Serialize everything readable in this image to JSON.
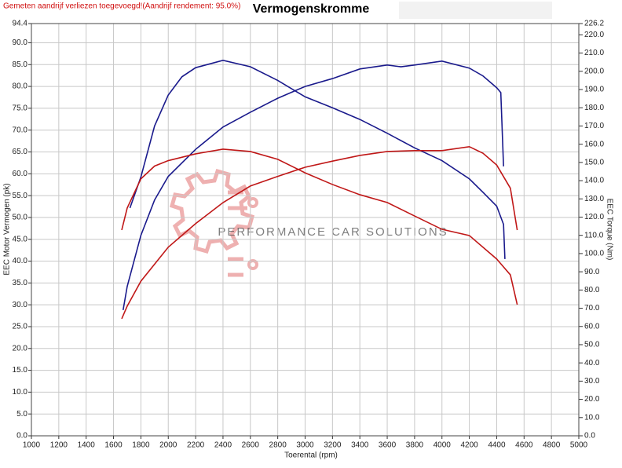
{
  "chart_data": {
    "type": "line",
    "note": "Gemeten aandrijf verliezen toegevoegd!(Aandrijf rendement: 95.0%)",
    "title": "Vermogenskromme",
    "watermark": "PERFORMANCE CAR SOLUTIONS",
    "xlabel": "Toerental (rpm)",
    "ylabel": "EEC Motor Vermogen (pk)",
    "y2label": "EEC Torque (Nm)",
    "grid": true,
    "xlim": [
      1000,
      5000
    ],
    "xticks": [
      1000,
      1200,
      1400,
      1600,
      1800,
      2000,
      2200,
      2400,
      2600,
      2800,
      3000,
      3200,
      3400,
      3600,
      3800,
      4000,
      4200,
      4400,
      4600,
      4800,
      5000
    ],
    "ylim": [
      0,
      94.4
    ],
    "yticks": [
      {
        "value": 0,
        "label": "0.0"
      },
      {
        "value": 5,
        "label": "5.0"
      },
      {
        "value": 10,
        "label": "10.0"
      },
      {
        "value": 15,
        "label": "15.0"
      },
      {
        "value": 20,
        "label": "20.0"
      },
      {
        "value": 25,
        "label": "25.0"
      },
      {
        "value": 30,
        "label": "30.0"
      },
      {
        "value": 35,
        "label": "35.0"
      },
      {
        "value": 40,
        "label": "40.0"
      },
      {
        "value": 45,
        "label": "45.0"
      },
      {
        "value": 50,
        "label": "50.0"
      },
      {
        "value": 55,
        "label": "55.0"
      },
      {
        "value": 60,
        "label": "60.0"
      },
      {
        "value": 65,
        "label": "65.0"
      },
      {
        "value": 70,
        "label": "70.0"
      },
      {
        "value": 75,
        "label": "75.0"
      },
      {
        "value": 80,
        "label": "80.0"
      },
      {
        "value": 85,
        "label": "85.0"
      },
      {
        "value": 90,
        "label": "90.0"
      },
      94.4
    ],
    "y2lim": [
      0,
      226.2
    ],
    "y2ticks": [
      {
        "value": 0,
        "label": "0.0"
      },
      {
        "value": 10,
        "label": "10.0"
      },
      {
        "value": 20,
        "label": "20.0"
      },
      {
        "value": 30,
        "label": "30.0"
      },
      {
        "value": 40,
        "label": "40.0"
      },
      {
        "value": 50,
        "label": "50.0"
      },
      {
        "value": 60,
        "label": "60.0"
      },
      {
        "value": 70,
        "label": "70.0"
      },
      {
        "value": 80,
        "label": "80.0"
      },
      {
        "value": 90,
        "label": "90.0"
      },
      {
        "value": 100,
        "label": "100.0"
      },
      {
        "value": 110,
        "label": "110.0"
      },
      {
        "value": 120,
        "label": "120.0"
      },
      {
        "value": 130,
        "label": "130.0"
      },
      {
        "value": 140,
        "label": "140.0"
      },
      {
        "value": 150,
        "label": "150.0"
      },
      {
        "value": 160,
        "label": "160.0"
      },
      {
        "value": 170,
        "label": "170.0"
      },
      {
        "value": 180,
        "label": "180.0"
      },
      {
        "value": 190,
        "label": "190.0"
      },
      {
        "value": 200,
        "label": "200.0"
      },
      {
        "value": 210,
        "label": "210.0"
      },
      {
        "value": 220,
        "label": "220.0"
      },
      226.2
    ],
    "series": [
      {
        "color": "#1a1a8c",
        "axis": "y2",
        "x": [
          1720,
          1800,
          1900,
          2000,
          2100,
          2200,
          2400,
          2600,
          2800,
          3000,
          3200,
          3400,
          3600,
          3800,
          4000,
          4200,
          4300,
          4400,
          4450,
          4460
        ],
        "values": [
          125,
          142,
          170,
          187,
          197,
          202,
          206,
          202.5,
          195,
          186,
          180,
          173.6,
          166,
          158,
          151,
          141,
          133.6,
          126,
          116,
          97
        ]
      },
      {
        "color": "#1a1a8c",
        "axis": "y",
        "x": [
          1670,
          1700,
          1800,
          1900,
          2000,
          2200,
          2400,
          2600,
          2800,
          3000,
          3200,
          3400,
          3600,
          3700,
          3800,
          4000,
          4200,
          4300,
          4400,
          4430,
          4450
        ],
        "values": [
          28.8,
          34.2,
          45.9,
          54,
          59.4,
          65.6,
          70.7,
          74.1,
          77.3,
          80,
          81.8,
          84,
          84.9,
          84.5,
          84.9,
          85.8,
          84.2,
          82.4,
          79.7,
          78.6,
          61.7
        ]
      },
      {
        "color": "#c01818",
        "axis": "y2",
        "x": [
          1660,
          1700,
          1800,
          1900,
          2000,
          2200,
          2400,
          2600,
          2800,
          3000,
          3200,
          3400,
          3600,
          3800,
          4000,
          4200,
          4400,
          4500,
          4550
        ],
        "values": [
          112.9,
          125,
          141,
          148,
          151,
          154.7,
          157.3,
          156,
          151.7,
          144.3,
          137.9,
          132.3,
          128,
          120.6,
          113.3,
          109.9,
          97,
          88.3,
          72
        ]
      },
      {
        "color": "#c01818",
        "axis": "y",
        "x": [
          1660,
          1700,
          1800,
          2000,
          2200,
          2400,
          2600,
          2800,
          3000,
          3200,
          3400,
          3600,
          3800,
          4000,
          4200,
          4300,
          4400,
          4500,
          4550
        ],
        "values": [
          26.8,
          29.7,
          35.4,
          43.2,
          48.6,
          53.4,
          57.2,
          59.4,
          61.5,
          62.9,
          64.2,
          65.1,
          65.3,
          65.3,
          66.2,
          64.7,
          62,
          56.7,
          47.1
        ]
      }
    ]
  }
}
